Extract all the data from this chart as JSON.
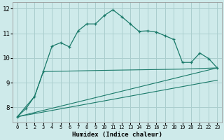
{
  "xlabel": "Humidex (Indice chaleur)",
  "background_color": "#ceeaea",
  "line_color": "#1a7a6a",
  "grid_color": "#aacece",
  "xlim": [
    -0.5,
    23.5
  ],
  "ylim": [
    7.4,
    12.25
  ],
  "xticks": [
    0,
    1,
    2,
    3,
    4,
    5,
    6,
    7,
    8,
    9,
    10,
    11,
    12,
    13,
    14,
    15,
    16,
    17,
    18,
    19,
    20,
    21,
    22,
    23
  ],
  "yticks": [
    8,
    9,
    10,
    11,
    12
  ],
  "series1_x": [
    0,
    1,
    2,
    3,
    4,
    5,
    6,
    7,
    8,
    9,
    10,
    11,
    12,
    13,
    14,
    15,
    16,
    17,
    18,
    19,
    20,
    21,
    22,
    23
  ],
  "series1_y": [
    7.62,
    7.95,
    8.45,
    9.45,
    10.48,
    10.62,
    10.45,
    11.1,
    11.38,
    11.38,
    11.72,
    11.95,
    11.68,
    11.38,
    11.08,
    11.1,
    11.05,
    10.9,
    10.75,
    9.82,
    9.82,
    10.2,
    9.98,
    9.6
  ],
  "series2_x": [
    0,
    2,
    3,
    10,
    19,
    23
  ],
  "series2_y": [
    7.62,
    8.45,
    9.45,
    9.5,
    9.55,
    9.6
  ],
  "series3_x": [
    0,
    23
  ],
  "series3_y": [
    7.62,
    9.6
  ],
  "series4_x": [
    0,
    23
  ],
  "series4_y": [
    7.62,
    9.1
  ]
}
